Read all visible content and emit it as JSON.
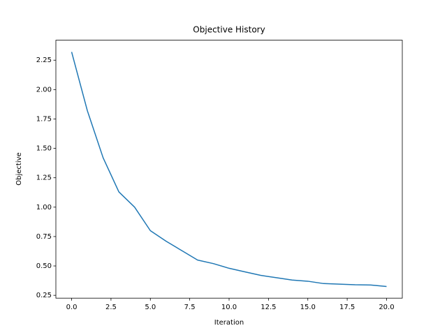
{
  "chart_data": {
    "type": "line",
    "title": "Objective History",
    "x_label": "Iteration",
    "y_label": "Objective",
    "x": [
      0,
      1,
      2,
      3,
      4,
      5,
      6,
      7,
      8,
      9,
      10,
      11,
      12,
      13,
      14,
      15,
      16,
      17,
      18,
      19,
      20
    ],
    "series": [
      {
        "color": "#1f77b4",
        "values": [
          2.32,
          1.82,
          1.42,
          1.13,
          1.0,
          0.8,
          0.71,
          0.63,
          0.55,
          0.52,
          0.48,
          0.45,
          0.42,
          0.4,
          0.38,
          0.37,
          0.35,
          0.345,
          0.34,
          0.338,
          0.325
        ]
      }
    ],
    "xlim": [
      -1,
      21
    ],
    "ylim": [
      0.226,
      2.42
    ],
    "xticks": [
      {
        "value": 0,
        "label": "0.0"
      },
      {
        "value": 2.5,
        "label": "2.5"
      },
      {
        "value": 5,
        "label": "5.0"
      },
      {
        "value": 7.5,
        "label": "7.5"
      },
      {
        "value": 10,
        "label": "10.0"
      },
      {
        "value": 12.5,
        "label": "12.5"
      },
      {
        "value": 15,
        "label": "15.0"
      },
      {
        "value": 17.5,
        "label": "17.5"
      },
      {
        "value": 20,
        "label": "20.0"
      }
    ],
    "yticks": [
      0.25,
      {
        "value": 0.5,
        "label": "0.50"
      },
      0.75,
      {
        "value": 1,
        "label": "1.00"
      },
      1.25,
      {
        "value": 1.5,
        "label": "1.50"
      },
      1.75,
      {
        "value": 2,
        "label": "2.00"
      },
      2.25
    ]
  }
}
